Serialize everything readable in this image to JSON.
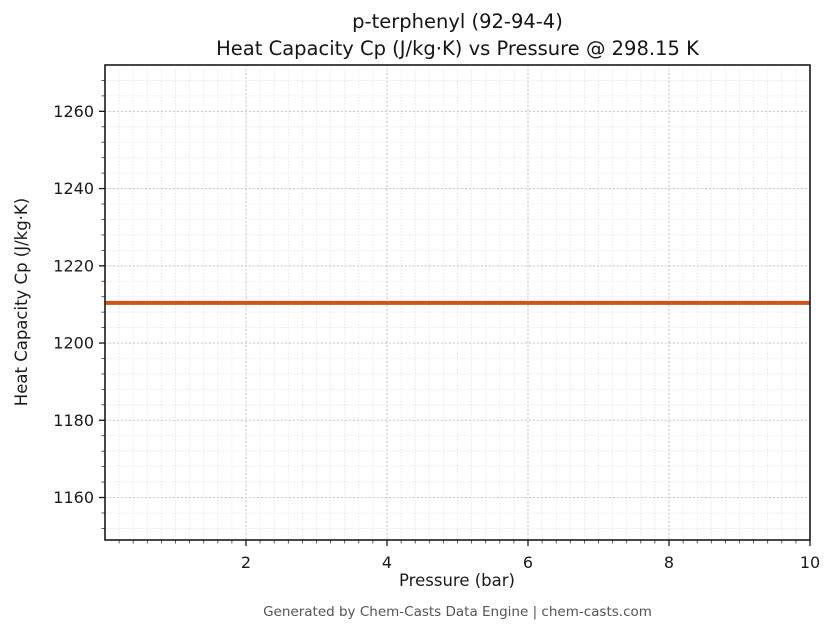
{
  "chart_data": {
    "type": "line",
    "title": "p-terphenyl (92-94-4)",
    "subtitle": "Heat Capacity Cp (J/kg·K) vs Pressure @ 298.15 K",
    "xlabel": "Pressure (bar)",
    "ylabel": "Heat Capacity Cp (J/kg·K)",
    "xlim": [
      0,
      10
    ],
    "ylim": [
      1149,
      1272
    ],
    "x_ticks": [
      2,
      4,
      6,
      8,
      10
    ],
    "y_ticks": [
      1160,
      1180,
      1200,
      1220,
      1240,
      1260
    ],
    "x_minor_step": 0.2,
    "y_minor_step": 4,
    "grid": true,
    "legend": "none",
    "series": [
      {
        "name": "Heat Capacity Cp",
        "color": "#d2521c",
        "x": [
          0,
          10
        ],
        "y": [
          1210.4,
          1210.4
        ]
      }
    ]
  },
  "footer": {
    "text": "Generated by Chem-Casts Data Engine | chem-casts.com"
  }
}
